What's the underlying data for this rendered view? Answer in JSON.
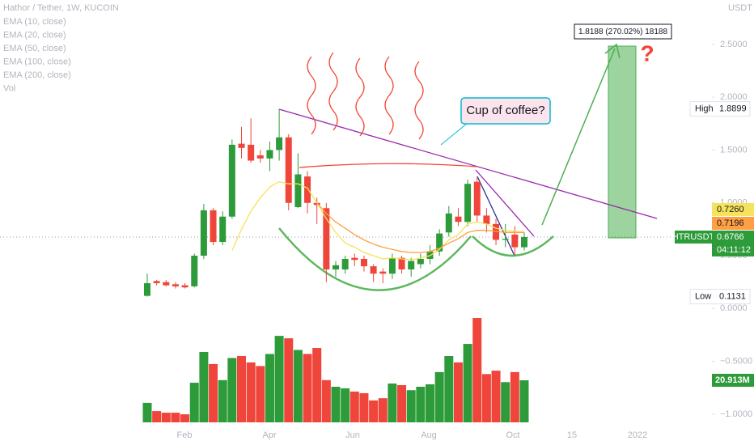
{
  "chart_data": {
    "type": "candlestick",
    "title": "Hathor / Tether, 1W, KUCOIN",
    "unit": "USDT",
    "symbol": "HTRUSDT",
    "countdown": "04:11:12",
    "up_color": "#2e9b3a",
    "down_color": "#f0453a",
    "grid": false,
    "ylim": [
      -1.1,
      2.92
    ],
    "yticks": [
      {
        "value": 2.5,
        "label": "2.5000"
      },
      {
        "value": 2.0,
        "label": "2.0000"
      },
      {
        "value": 1.5,
        "label": "1.5000"
      },
      {
        "value": 1.0,
        "label": "1.0000"
      },
      {
        "value": 0.5,
        "label": "0.5000"
      },
      {
        "value": 0,
        "label": "0.0000"
      },
      {
        "value": -0.5,
        "label": "−0.5000"
      },
      {
        "value": -1.0,
        "label": "−1.0000"
      }
    ],
    "x_labels": [
      "Feb",
      "Apr",
      "Jun",
      "Aug",
      "Oct",
      "15",
      "2022"
    ],
    "open": [
      0.12,
      0.26,
      0.25,
      0.23,
      0.22,
      0.21,
      0.5,
      0.93,
      0.63,
      0.87,
      1.56,
      1.55,
      1.45,
      1.42,
      1.5,
      1.62,
      0.96,
      1.25,
      1.0,
      0.95,
      0.37,
      0.37,
      0.48,
      0.47,
      0.4,
      0.35,
      0.33,
      0.48,
      0.37,
      0.42,
      0.47,
      0.54,
      0.72,
      0.87,
      0.82,
      1.2,
      0.88,
      0.8,
      0.65,
      0.7,
      0.58
    ],
    "high": [
      0.33,
      0.27,
      0.27,
      0.25,
      0.24,
      0.52,
      0.99,
      0.95,
      0.92,
      1.6,
      1.72,
      1.8,
      1.5,
      1.58,
      1.8899,
      1.65,
      1.47,
      1.3,
      1.05,
      1.0,
      0.45,
      0.5,
      0.52,
      0.5,
      0.42,
      0.38,
      0.52,
      0.5,
      0.48,
      0.52,
      0.6,
      0.75,
      0.97,
      0.95,
      1.22,
      1.24,
      0.95,
      0.85,
      0.8,
      0.78,
      0.72
    ],
    "low": [
      0.1131,
      0.22,
      0.21,
      0.19,
      0.19,
      0.2,
      0.47,
      0.6,
      0.6,
      0.85,
      1.42,
      1.38,
      1.38,
      1.3,
      1.4,
      0.93,
      0.95,
      0.9,
      0.8,
      0.25,
      0.3,
      0.33,
      0.4,
      0.35,
      0.25,
      0.24,
      0.28,
      0.33,
      0.3,
      0.38,
      0.42,
      0.5,
      0.68,
      0.78,
      0.78,
      0.82,
      0.72,
      0.6,
      0.58,
      0.5,
      0.55
    ],
    "close": [
      0.24,
      0.24,
      0.22,
      0.21,
      0.2,
      0.5,
      0.93,
      0.63,
      0.87,
      1.55,
      1.52,
      1.4,
      1.42,
      1.5,
      1.62,
      1.0,
      1.27,
      1.0,
      0.98,
      0.37,
      0.41,
      0.47,
      0.46,
      0.4,
      0.33,
      0.33,
      0.48,
      0.37,
      0.45,
      0.47,
      0.54,
      0.71,
      0.9,
      0.82,
      1.18,
      0.88,
      0.8,
      0.65,
      0.66,
      0.58,
      0.6766
    ],
    "volume": {
      "values": [
        9.7,
        5.6,
        4.8,
        4.8,
        4.0,
        19.7,
        35,
        29,
        21,
        32,
        33,
        29.8,
        28,
        34,
        43,
        41.8,
        36,
        34,
        37,
        21,
        17.7,
        16.9,
        15.3,
        14.5,
        10.9,
        12,
        19.3,
        18.5,
        16,
        17.7,
        18.9,
        25,
        33,
        29.8,
        39,
        51.9,
        24,
        25.7,
        20,
        25,
        20.913
      ],
      "last_label": "20.913M"
    },
    "series": [
      {
        "name": "EMA (10, close)",
        "color": "#f5e35b",
        "last_label": "0.7260",
        "values": [
          null,
          null,
          null,
          null,
          null,
          null,
          null,
          null,
          null,
          0.55,
          0.75,
          0.92,
          1.05,
          1.15,
          1.2,
          1.18,
          1.18,
          1.14,
          1.0,
          0.85,
          0.72,
          0.62,
          0.58,
          0.53,
          0.5,
          0.47,
          0.48,
          0.47,
          0.46,
          0.48,
          0.5,
          0.56,
          0.65,
          0.7,
          0.8,
          0.82,
          0.8,
          0.76,
          0.74,
          0.73,
          0.726
        ]
      },
      {
        "name": "EMA (20, close)",
        "color": "#ff9f43",
        "last_label": "0.7196",
        "values": [
          null,
          null,
          null,
          null,
          null,
          null,
          null,
          null,
          null,
          null,
          null,
          null,
          null,
          null,
          null,
          null,
          null,
          null,
          1.0,
          0.9,
          0.82,
          0.76,
          0.7,
          0.65,
          0.61,
          0.58,
          0.56,
          0.54,
          0.53,
          0.53,
          0.54,
          0.57,
          0.62,
          0.66,
          0.72,
          0.74,
          0.74,
          0.73,
          0.72,
          0.72,
          0.7196
        ]
      }
    ],
    "other_indicators": [
      "EMA (50, close)",
      "EMA (100, close)",
      "EMA (200, close)",
      "Vol"
    ],
    "extremes": {
      "high_label": "High",
      "high": 1.8899,
      "low_label": "Low",
      "low": 0.1131
    },
    "annotations": {
      "callout": "Cup of coffee?",
      "measure": "1.8188 (270.02%) 18188",
      "question": "?"
    }
  }
}
